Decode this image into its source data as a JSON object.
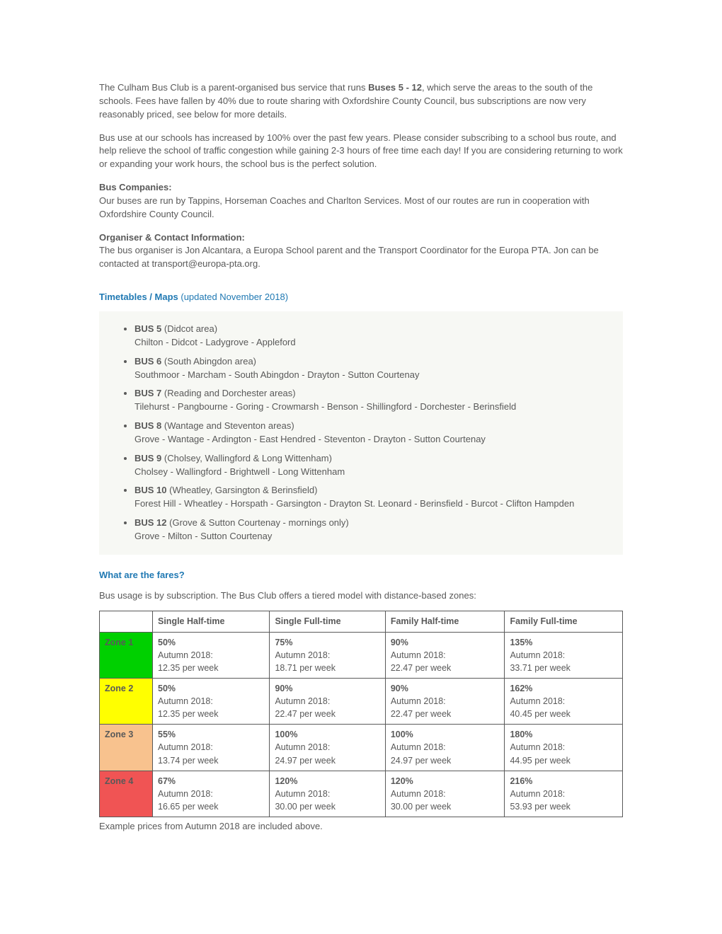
{
  "intro": {
    "p1_a": "The Culham Bus Club is a parent-organised bus service that runs ",
    "p1_bold": "Buses 5 - 12",
    "p1_b": ", which serve the areas to the south of the schools. Fees have fallen by 40% due to route sharing with Oxfordshire County Council, bus subscriptions are now very reasonably priced, see below for more details.",
    "p2": "Bus use at our schools has increased by 100% over the past few years. Please consider subscribing to a school bus route, and help relieve the school of traffic congestion while gaining 2-3 hours of free time each day! If you are considering returning to work or expanding your work hours, the school bus is the perfect solution."
  },
  "companies": {
    "heading": "Bus Companies:",
    "body": "Our buses are run by Tappins, Horseman Coaches and Charlton Services. Most of our routes are run in cooperation with Oxfordshire County Council."
  },
  "organiser": {
    "heading": "Organiser & Contact Information:",
    "body": "The bus organiser is Jon Alcantara, a Europa School parent and the Transport Coordinator for the Europa PTA. Jon can be contacted at transport@europa-pta.org."
  },
  "timetables": {
    "heading_main": "Timetables / Maps ",
    "heading_sub": "(updated November 2018)",
    "buses": [
      {
        "name": "BUS 5",
        "area": " (Didcot area)",
        "route": "Chilton - Didcot - Ladygrove - Appleford"
      },
      {
        "name": "BUS 6",
        "area": " (South Abingdon area)",
        "route": "Southmoor - Marcham - South Abingdon - Drayton - Sutton Courtenay"
      },
      {
        "name": "BUS 7",
        "area": " (Reading and Dorchester areas)",
        "route": "Tilehurst - Pangbourne - Goring - Crowmarsh - Benson - Shillingford - Dorchester - Berinsfield"
      },
      {
        "name": "BUS 8",
        "area": " (Wantage and Steventon areas)",
        "route": "Grove - Wantage - Ardington - East Hendred - Steventon - Drayton - Sutton Courtenay"
      },
      {
        "name": "BUS 9",
        "area": " (Cholsey, Wallingford & Long Wittenham)",
        "route": "Cholsey - Wallingford - Brightwell - Long Wittenham"
      },
      {
        "name": "BUS 10",
        "area": " (Wheatley, Garsington & Berinsfield)",
        "route": "Forest Hill - Wheatley - Horspath - Garsington - Drayton St. Leonard - Berinsfield - Burcot - Clifton Hampden"
      },
      {
        "name": "BUS 12",
        "area": " (Grove & Sutton Courtenay - mornings only)",
        "route": "Grove - Milton - Sutton Courtenay"
      }
    ]
  },
  "fares": {
    "heading": "What are the fares?",
    "intro": "Bus usage is by subscription. The Bus Club offers a tiered model with distance-based zones:",
    "columns": [
      "",
      "Single Half-time",
      "Single Full-time",
      "Family Half-time",
      "Family Full-time"
    ],
    "term_label": "Autumn 2018:",
    "zone_colors": [
      "#00d000",
      "#ffff00",
      "#f8c28e",
      "#f05454"
    ],
    "rows": [
      {
        "zone": "Zone 1",
        "cells": [
          {
            "pct": "50%",
            "price": "12.35 per week"
          },
          {
            "pct": "75%",
            "price": "18.71 per week"
          },
          {
            "pct": "90%",
            "price": "22.47 per week"
          },
          {
            "pct": "135%",
            "price": "33.71 per week"
          }
        ]
      },
      {
        "zone": "Zone 2",
        "cells": [
          {
            "pct": "50%",
            "price": "12.35 per week"
          },
          {
            "pct": "90%",
            "price": "22.47 per week"
          },
          {
            "pct": "90%",
            "price": "22.47 per week"
          },
          {
            "pct": "162%",
            "price": "40.45 per week"
          }
        ]
      },
      {
        "zone": "Zone 3",
        "cells": [
          {
            "pct": "55%",
            "price": "13.74 per week"
          },
          {
            "pct": "100%",
            "price": "24.97 per week"
          },
          {
            "pct": "100%",
            "price": "24.97 per week"
          },
          {
            "pct": "180%",
            "price": "44.95 per week"
          }
        ]
      },
      {
        "zone": "Zone 4",
        "cells": [
          {
            "pct": "67%",
            "price": "16.65 per week"
          },
          {
            "pct": "120%",
            "price": "30.00 per week"
          },
          {
            "pct": "120%",
            "price": "30.00 per week"
          },
          {
            "pct": "216%",
            "price": "53.93 per week"
          }
        ]
      }
    ],
    "caption": "Example prices from Autumn 2018 are included above."
  }
}
